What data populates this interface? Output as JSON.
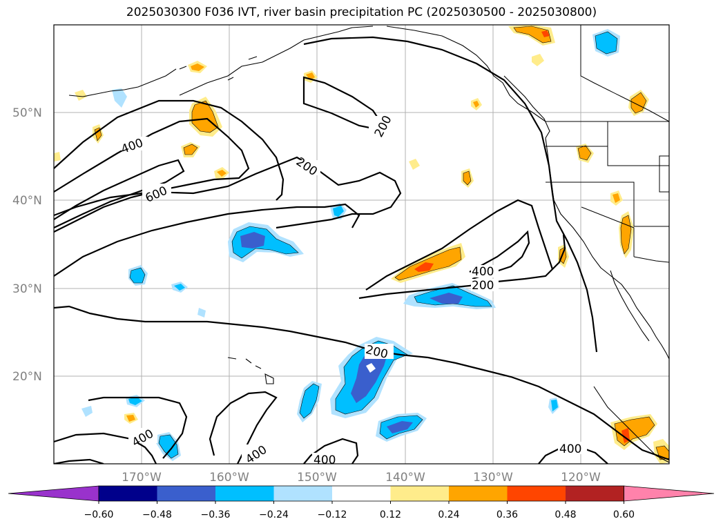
{
  "title": "2025030300 F036 IVT, river basin precipitation PC (2025030500 - 2025030800)",
  "map": {
    "lat_labels": [
      "50°N",
      "40°N",
      "30°N",
      "20°N"
    ],
    "lon_labels": [
      "170°W",
      "160°W",
      "150°W",
      "140°W",
      "130°W",
      "120°W"
    ],
    "contour_labels": [
      "400",
      "600",
      "200",
      "200",
      "400",
      "200",
      "200",
      "400",
      "400",
      "400",
      "400"
    ]
  },
  "colorbar": {
    "ticks": [
      "−0.60",
      "−0.48",
      "−0.36",
      "−0.24",
      "−0.12",
      "0.12",
      "0.24",
      "0.36",
      "0.48",
      "0.60"
    ],
    "colors": [
      "#9932cc",
      "#00008b",
      "#3a5fcd",
      "#00bfff",
      "#b0e2ff",
      "#ffffff",
      "#ffec8b",
      "#ffa500",
      "#ff4500",
      "#b22222",
      "#ff82ab"
    ]
  }
}
